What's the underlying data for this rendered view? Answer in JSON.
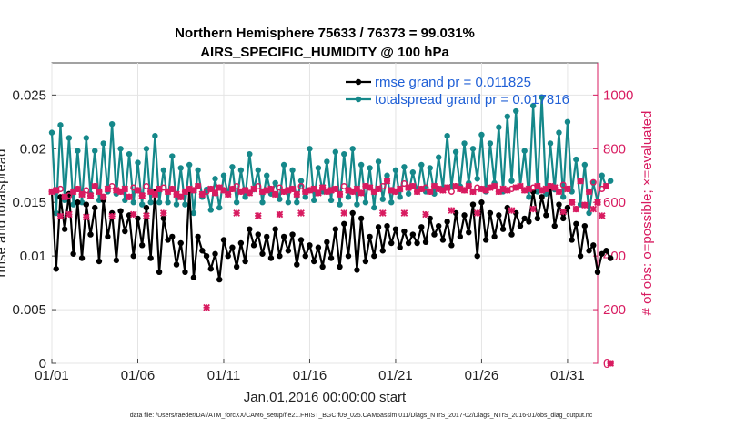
{
  "chart_data": {
    "type": "line",
    "title": "Northern Hemisphere 75633 / 76373 = 99.031%",
    "subtitle": "AIRS_SPECIFIC_HUMIDITY @ 100 hPa",
    "xlabel": "Jan.01,2016 00:00:00 start",
    "ylabel": "rmse and totalspread",
    "ylabel_right": "# of obs: o=possible; ×=evaluated",
    "footer": "data file: /Users/raeder/DAI/ATM_forcXX/CAM6_setup/f.e21.FHIST_BGC.f09_025.CAM6assim.011/Diags_NTrS_2017-02/Diags_NTrS_2016-01/obs_diag_output.nc",
    "x_range": [
      0,
      31.75
    ],
    "ylim": [
      0,
      0.028
    ],
    "ylim_right": [
      0,
      1120
    ],
    "x_ticks": [
      {
        "value": 0,
        "label": "01/01"
      },
      {
        "value": 5,
        "label": "01/06"
      },
      {
        "value": 10,
        "label": "01/11"
      },
      {
        "value": 15,
        "label": "01/16"
      },
      {
        "value": 20,
        "label": "01/21"
      },
      {
        "value": 25,
        "label": "01/26"
      },
      {
        "value": 30,
        "label": "01/31"
      }
    ],
    "y_ticks": [
      {
        "value": 0,
        "label": "0"
      },
      {
        "value": 0.005,
        "label": "0.005"
      },
      {
        "value": 0.01,
        "label": "0.01"
      },
      {
        "value": 0.015,
        "label": "0.015"
      },
      {
        "value": 0.02,
        "label": "0.02"
      },
      {
        "value": 0.025,
        "label": "0.025"
      }
    ],
    "y_ticks_right": [
      {
        "value": 0,
        "label": "0"
      },
      {
        "value": 200,
        "label": "200"
      },
      {
        "value": 400,
        "label": "400"
      },
      {
        "value": 600,
        "label": "600"
      },
      {
        "value": 800,
        "label": "800"
      },
      {
        "value": 1000,
        "label": "1000"
      }
    ],
    "x_step": 0.25,
    "series": [
      {
        "name": "rmse grand pr = 0.011825",
        "color": "#000000",
        "values": [
          0.016,
          0.0088,
          0.0155,
          0.0125,
          0.0158,
          0.0102,
          0.015,
          0.0098,
          0.0148,
          0.012,
          0.0145,
          0.0095,
          0.0152,
          0.0118,
          0.014,
          0.0096,
          0.0142,
          0.0123,
          0.0138,
          0.01,
          0.0135,
          0.011,
          0.0145,
          0.0098,
          0.016,
          0.0085,
          0.0135,
          0.0115,
          0.0118,
          0.0092,
          0.0112,
          0.0085,
          0.0162,
          0.008,
          0.0118,
          0.0105,
          0.01,
          0.0088,
          0.0102,
          0.0078,
          0.0115,
          0.01,
          0.0108,
          0.009,
          0.0112,
          0.0095,
          0.0125,
          0.011,
          0.012,
          0.0102,
          0.0118,
          0.0098,
          0.0125,
          0.01,
          0.0118,
          0.0105,
          0.012,
          0.0092,
          0.0115,
          0.01,
          0.011,
          0.0095,
          0.0108,
          0.009,
          0.0113,
          0.0098,
          0.0125,
          0.009,
          0.013,
          0.01,
          0.014,
          0.0087,
          0.0135,
          0.0095,
          0.0118,
          0.01,
          0.0127,
          0.0105,
          0.0128,
          0.0112,
          0.0125,
          0.0108,
          0.0123,
          0.0112,
          0.012,
          0.0112,
          0.0127,
          0.0113,
          0.0135,
          0.012,
          0.0128,
          0.0115,
          0.0132,
          0.011,
          0.014,
          0.0118,
          0.0138,
          0.0122,
          0.0148,
          0.01,
          0.015,
          0.0115,
          0.014,
          0.0118,
          0.0138,
          0.0125,
          0.0145,
          0.012,
          0.014,
          0.0128,
          0.0135,
          0.0132,
          0.016,
          0.0135,
          0.0155,
          0.0138,
          0.0165,
          0.0128,
          0.0148,
          0.0135,
          0.0145,
          0.0115,
          0.013,
          0.01,
          0.0128,
          0.0105,
          0.011,
          0.0085,
          0.0102,
          0.0105,
          0.0098
        ]
      },
      {
        "name": "totalspread grand pr = 0.017816",
        "color": "#15888a",
        "values": [
          0.0215,
          0.014,
          0.0222,
          0.0152,
          0.021,
          0.0148,
          0.0198,
          0.015,
          0.021,
          0.0158,
          0.0198,
          0.0152,
          0.0205,
          0.016,
          0.0223,
          0.0158,
          0.02,
          0.0152,
          0.0195,
          0.015,
          0.0187,
          0.0148,
          0.02,
          0.015,
          0.0212,
          0.015,
          0.018,
          0.015,
          0.0193,
          0.0148,
          0.0182,
          0.0148,
          0.0185,
          0.014,
          0.018,
          0.0155,
          0.0162,
          0.0143,
          0.0172,
          0.0145,
          0.0175,
          0.0158,
          0.0183,
          0.015,
          0.018,
          0.0155,
          0.0195,
          0.0162,
          0.018,
          0.015,
          0.0175,
          0.0158,
          0.0168,
          0.0153,
          0.0185,
          0.015,
          0.018,
          0.015,
          0.017,
          0.0155,
          0.02,
          0.0152,
          0.0182,
          0.016,
          0.0188,
          0.0152,
          0.0197,
          0.0148,
          0.0195,
          0.0155,
          0.02,
          0.0148,
          0.0185,
          0.015,
          0.0182,
          0.0145,
          0.0188,
          0.0153,
          0.0175,
          0.015,
          0.018,
          0.0155,
          0.0183,
          0.0158,
          0.0178,
          0.016,
          0.0185,
          0.016,
          0.0182,
          0.0158,
          0.0192,
          0.0163,
          0.0212,
          0.0165,
          0.0197,
          0.0165,
          0.0205,
          0.0168,
          0.02,
          0.0172,
          0.0213,
          0.016,
          0.0205,
          0.0168,
          0.022,
          0.016,
          0.023,
          0.017,
          0.0235,
          0.0165,
          0.0198,
          0.0155,
          0.024,
          0.016,
          0.0248,
          0.0158,
          0.0205,
          0.0162,
          0.0215,
          0.0155,
          0.0225,
          0.016,
          0.019,
          0.0148,
          0.0185,
          0.014,
          0.0168,
          0.015,
          0.0175,
          0.0165,
          0.017
        ]
      }
    ],
    "obs_possible": {
      "name": "possible",
      "color": "#d81b60",
      "marker": "circle",
      "values": [
        640,
        645,
        650,
        620,
        625,
        640,
        650,
        630,
        645,
        625,
        660,
        640,
        620,
        650,
        660,
        645,
        640,
        650,
        620,
        655,
        645,
        625,
        660,
        640,
        630,
        650,
        655,
        640,
        650,
        630,
        620,
        640,
        650,
        645,
        660,
        630,
        640,
        650,
        635,
        655,
        645,
        630,
        650,
        660,
        640,
        645,
        635,
        650,
        660,
        640,
        645,
        650,
        630,
        655,
        640,
        645,
        650,
        630,
        660,
        640,
        645,
        650,
        635,
        655,
        640,
        645,
        650,
        630,
        660,
        645,
        640,
        650,
        635,
        660,
        655,
        640,
        650,
        660,
        680,
        645,
        640,
        650,
        670,
        655,
        660,
        640,
        650,
        655,
        640,
        660,
        650,
        645,
        655,
        640,
        660,
        650,
        645,
        660,
        640,
        655,
        650,
        645,
        655,
        660,
        640,
        650,
        645,
        650,
        655,
        660,
        645,
        650,
        655,
        660,
        645,
        650,
        660,
        655,
        640,
        665,
        650,
        600,
        575,
        680,
        590,
        640,
        675,
        600,
        650,
        660,
        0
      ]
    },
    "obs_evaluated": {
      "name": "evaluated",
      "color": "#d81b60",
      "marker": "x",
      "values": [
        640,
        645,
        548,
        620,
        555,
        640,
        650,
        630,
        545,
        625,
        660,
        640,
        620,
        650,
        548,
        645,
        640,
        650,
        620,
        555,
        645,
        625,
        550,
        640,
        630,
        650,
        560,
        640,
        650,
        630,
        620,
        640,
        650,
        645,
        660,
        630,
        208,
        650,
        635,
        655,
        645,
        630,
        650,
        560,
        640,
        645,
        635,
        650,
        550,
        640,
        645,
        650,
        630,
        555,
        640,
        645,
        650,
        630,
        560,
        640,
        645,
        650,
        635,
        655,
        640,
        645,
        650,
        630,
        560,
        645,
        640,
        650,
        635,
        660,
        655,
        640,
        650,
        560,
        680,
        645,
        640,
        650,
        560,
        655,
        660,
        640,
        650,
        555,
        640,
        660,
        650,
        645,
        655,
        570,
        660,
        650,
        645,
        660,
        640,
        560,
        650,
        645,
        655,
        660,
        640,
        650,
        645,
        570,
        655,
        660,
        645,
        650,
        575,
        660,
        645,
        650,
        660,
        655,
        640,
        565,
        650,
        600,
        575,
        680,
        590,
        640,
        575,
        600,
        550,
        660,
        0
      ]
    }
  }
}
